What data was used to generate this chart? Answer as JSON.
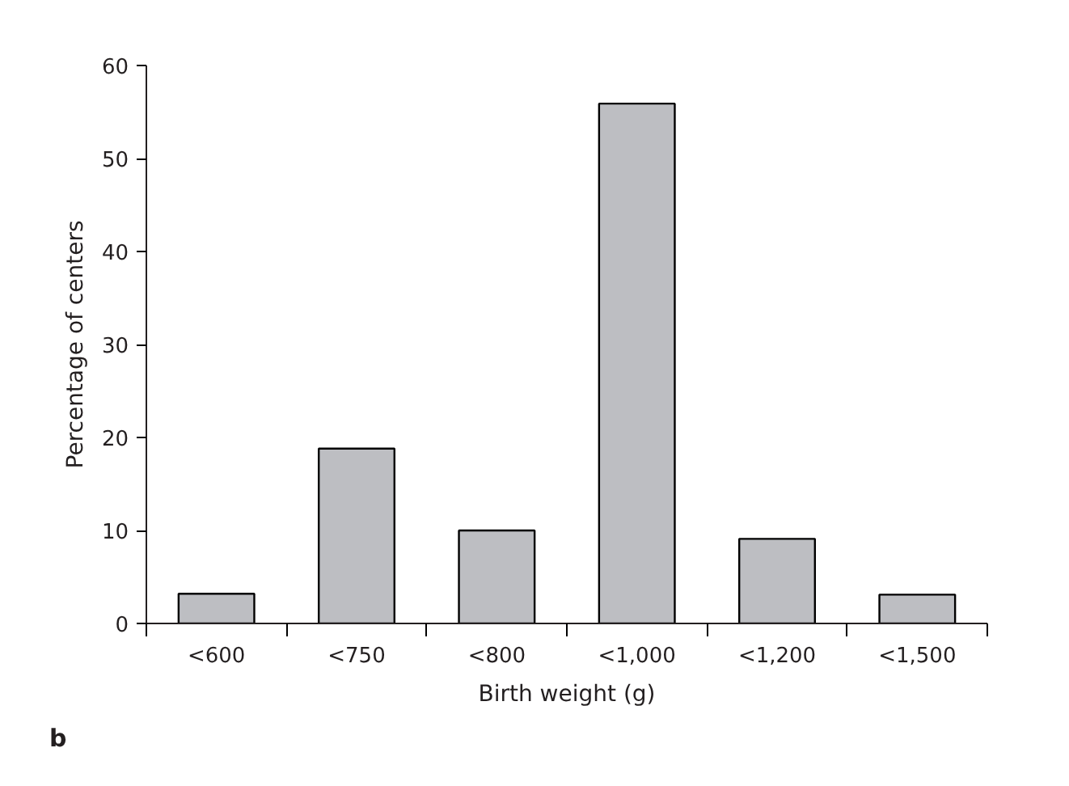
{
  "chart_data": {
    "type": "bar",
    "xlabel": "Birth weight (g)",
    "ylabel": "Percentage of centers",
    "categories": [
      "<600",
      "<750",
      "<800",
      "<1,000",
      "<1,200",
      "<1,500"
    ],
    "values": [
      3.2,
      18.8,
      10.0,
      55.9,
      9.1,
      3.1
    ],
    "color": "#bdbec2",
    "ylim": [
      0,
      60
    ],
    "yticks": [
      0,
      10,
      20,
      30,
      40,
      50,
      60
    ],
    "grid": false,
    "annotations": [
      "b"
    ]
  }
}
